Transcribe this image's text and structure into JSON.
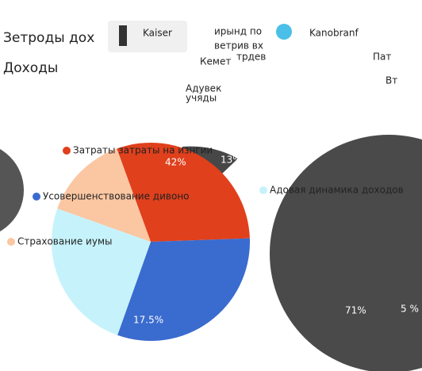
{
  "chart_data": {
    "type": "pie",
    "title": "Зетроды дох",
    "subtitle": "Доходы",
    "header_texts": [
      "Kaiser",
      "Kanobranf",
      "ирынд по",
      "ветрив вх",
      "трдев",
      "Кемет",
      "Адувек",
      "учяды",
      "Пат",
      "Вт"
    ],
    "categories": [
      "Затраты затраты на изнгии",
      "Усовершенствование дивоно",
      "Адовая динамика доходов",
      "Страхование иумы"
    ],
    "values": [
      30,
      31,
      25,
      14
    ],
    "colors": [
      "#e0401c",
      "#3a6bcf",
      "#c6f3fb",
      "#fbc6a2"
    ],
    "annotations": [
      "42%",
      "13%",
      "17.5%",
      "5 %",
      "71%"
    ]
  }
}
